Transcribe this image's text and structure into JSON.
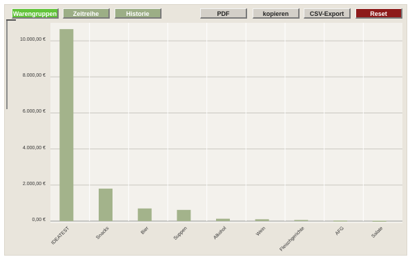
{
  "toolbar": {
    "tabs": [
      {
        "label": "Warengruppen",
        "active": true
      },
      {
        "label": "Zeitreihe",
        "active": false
      },
      {
        "label": "Historie",
        "active": false
      }
    ],
    "pdf_label": "PDF",
    "copy_label": "kopieren",
    "csv_label": "CSV-Export",
    "reset_label": "Reset"
  },
  "colors": {
    "bar": "#a3b38b",
    "tab_active": "#62c43a",
    "tab_inactive": "#9cae86",
    "reset": "#8d1a1a"
  },
  "chart_data": {
    "type": "bar",
    "categories": [
      "IDEATEST",
      "Snacks",
      "Bier",
      "Suppen",
      "Alkohol",
      "Wein",
      "Fleischgerichte",
      "AFG",
      "Salate"
    ],
    "values": [
      10650,
      1800,
      700,
      620,
      130,
      100,
      60,
      30,
      20
    ],
    "ylim": [
      0,
      11000
    ],
    "yticks": [
      0,
      2000,
      4000,
      6000,
      8000,
      10000
    ],
    "ytick_labels": [
      "0,00 €",
      "2.000,00 €",
      "4.000,00 €",
      "6.000,00 €",
      "8.000,00 €",
      "10.000,00 €"
    ],
    "grid": true,
    "xlabel": "",
    "ylabel": "",
    "title": ""
  }
}
